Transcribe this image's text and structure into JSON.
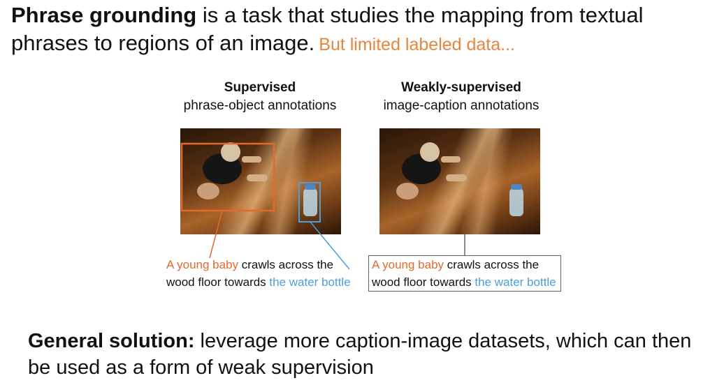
{
  "intro": {
    "title_bold": "Phrase grounding",
    "title_rest": " is a task that studies the mapping from textual phrases to regions of an image.",
    "highlight": "But limited labeled data..."
  },
  "left_panel": {
    "heading": "Supervised",
    "subheading": "phrase-object annotations",
    "caption": {
      "part1": "A young baby",
      "part2": " crawls across the wood floor towards ",
      "part3": "the water bottle"
    }
  },
  "right_panel": {
    "heading": "Weakly-supervised",
    "subheading": "image-caption annotations",
    "caption": {
      "part1": "A young baby",
      "part2": " crawls across the wood floor towards ",
      "part3": "the water bottle"
    }
  },
  "general": {
    "label": "General solution:",
    "text": " leverage more caption-image datasets, which can then be used as a form of weak supervision"
  },
  "colors": {
    "orange": "#e4692c",
    "blue": "#4a9fdc",
    "highlight_orange": "#e8853e"
  }
}
